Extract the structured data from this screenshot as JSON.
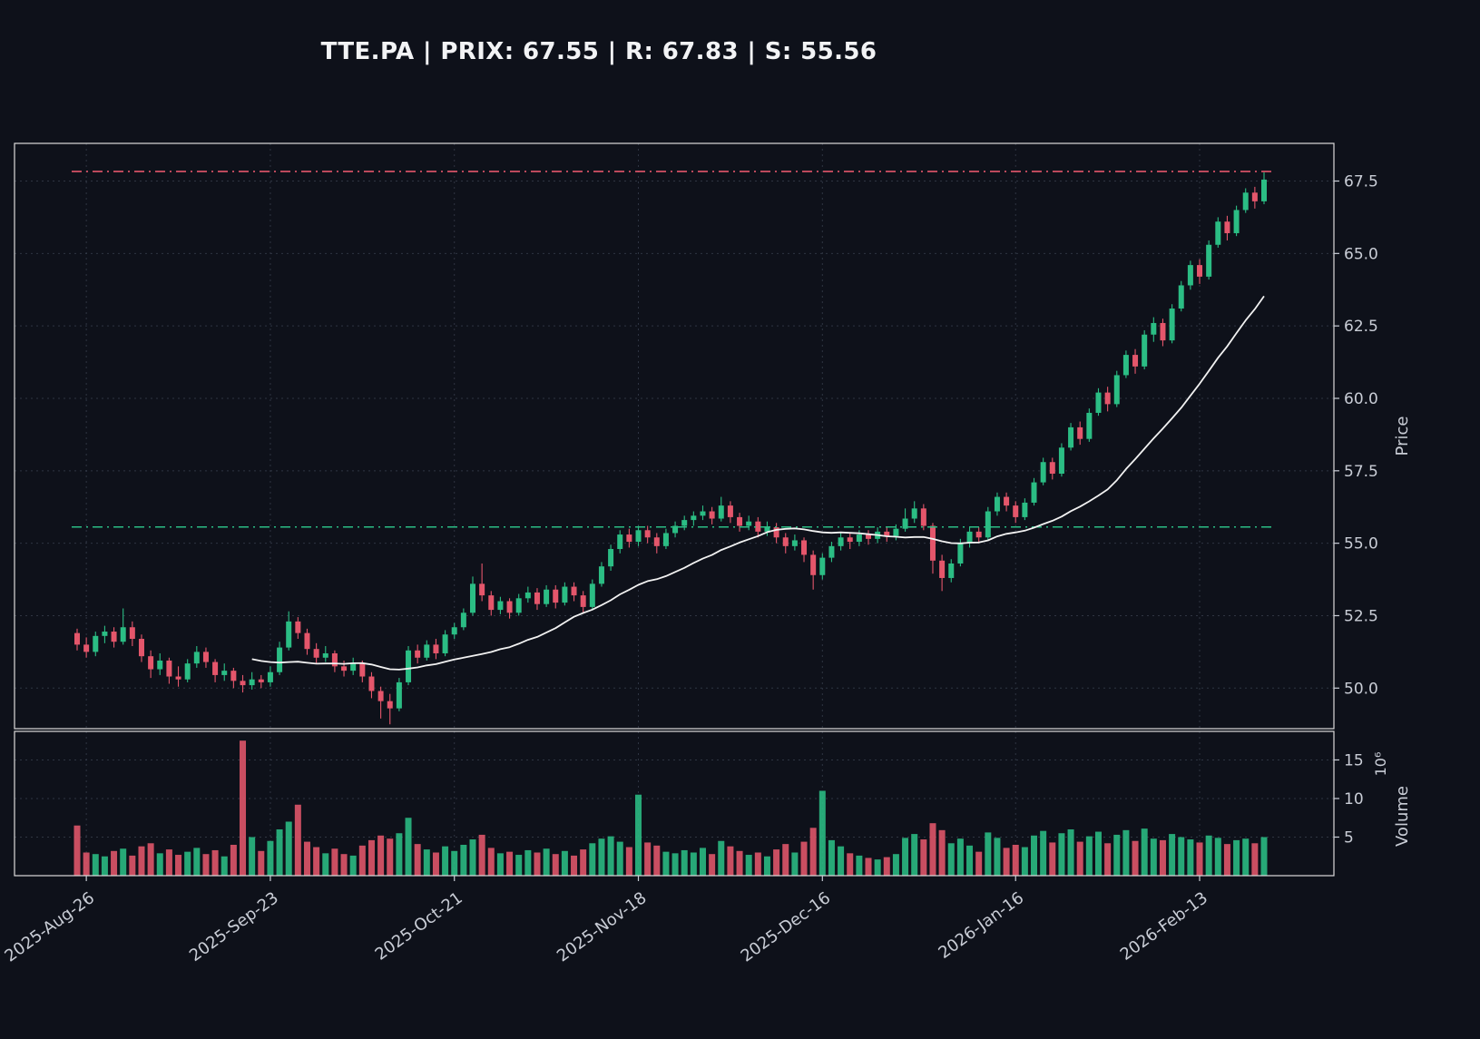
{
  "header": {
    "title": "TTE.PA | PRIX: 67.55 | R: 67.83 | S: 55.56",
    "symbol": "TTE.PA",
    "price": 67.55,
    "resistance_value": 67.83,
    "support_value": 55.56
  },
  "chart_data": {
    "type": "candlestick",
    "title": "TTE.PA | PRIX: 67.55 | R: 67.83 | S: 55.56",
    "price_axis": {
      "label": "Price",
      "ticks": [
        50.0,
        52.5,
        55.0,
        57.5,
        60.0,
        62.5,
        65.0,
        67.5
      ],
      "range": [
        48.6,
        68.8
      ]
    },
    "volume_axis": {
      "label": "Volume",
      "offset_text": "10⁶",
      "ticks": [
        5,
        10,
        15
      ],
      "range": [
        0,
        18.7
      ]
    },
    "x_ticks": [
      {
        "i": 1,
        "label": "2025-Aug-26"
      },
      {
        "i": 21,
        "label": "2025-Sep-23"
      },
      {
        "i": 41,
        "label": "2025-Oct-21"
      },
      {
        "i": 61,
        "label": "2025-Nov-18"
      },
      {
        "i": 81,
        "label": "2025-Dec-16"
      },
      {
        "i": 102,
        "label": "2026-Jan-16"
      },
      {
        "i": 122,
        "label": "2026-Feb-13"
      }
    ],
    "levels": {
      "resistance": 67.83,
      "support": 55.56
    },
    "moving_average": {
      "window": 20
    },
    "colors": {
      "up": "#2bbd84",
      "down": "#e4566b",
      "ma": "#f2f2f2",
      "resistance": "#e4566b",
      "support": "#2bbd84",
      "grid": "#3a4150",
      "text": "#c9cdd6",
      "spine": "#dcdcdc",
      "background": "#0e111a"
    },
    "candles": [
      [
        51.9,
        52.05,
        51.3,
        51.5,
        6.5
      ],
      [
        51.5,
        51.75,
        51.05,
        51.25,
        3.0
      ],
      [
        51.25,
        51.95,
        51.1,
        51.8,
        2.8
      ],
      [
        51.8,
        52.15,
        51.55,
        51.95,
        2.5
      ],
      [
        51.95,
        52.1,
        51.4,
        51.6,
        3.2
      ],
      [
        51.6,
        52.75,
        51.5,
        52.1,
        3.5
      ],
      [
        52.1,
        52.3,
        51.45,
        51.7,
        2.6
      ],
      [
        51.7,
        51.85,
        50.9,
        51.1,
        3.8
      ],
      [
        51.1,
        51.3,
        50.35,
        50.65,
        4.2
      ],
      [
        50.65,
        51.2,
        50.45,
        50.95,
        2.9
      ],
      [
        50.95,
        51.05,
        50.15,
        50.4,
        3.4
      ],
      [
        50.4,
        50.75,
        50.05,
        50.3,
        2.7
      ],
      [
        50.3,
        51.0,
        50.2,
        50.85,
        3.1
      ],
      [
        50.85,
        51.45,
        50.7,
        51.25,
        3.6
      ],
      [
        51.25,
        51.4,
        50.7,
        50.9,
        2.8
      ],
      [
        50.9,
        51.0,
        50.2,
        50.45,
        3.3
      ],
      [
        50.45,
        50.85,
        50.25,
        50.6,
        2.5
      ],
      [
        50.6,
        50.7,
        50.0,
        50.25,
        4.0
      ],
      [
        50.25,
        50.45,
        49.85,
        50.1,
        17.5
      ],
      [
        50.1,
        50.55,
        49.95,
        50.3,
        5.0
      ],
      [
        50.3,
        50.45,
        50.0,
        50.2,
        3.2
      ],
      [
        50.2,
        50.75,
        50.05,
        50.55,
        4.5
      ],
      [
        50.55,
        51.6,
        50.45,
        51.4,
        6.0
      ],
      [
        51.4,
        52.65,
        51.3,
        52.3,
        7.0
      ],
      [
        52.3,
        52.45,
        51.7,
        51.9,
        9.2
      ],
      [
        51.9,
        52.05,
        51.15,
        51.35,
        4.4
      ],
      [
        51.35,
        51.55,
        50.85,
        51.05,
        3.7
      ],
      [
        51.05,
        51.45,
        50.9,
        51.2,
        2.9
      ],
      [
        51.2,
        51.3,
        50.55,
        50.75,
        3.5
      ],
      [
        50.75,
        50.95,
        50.4,
        50.6,
        2.8
      ],
      [
        50.6,
        51.05,
        50.45,
        50.85,
        2.6
      ],
      [
        50.85,
        50.95,
        50.2,
        50.4,
        3.9
      ],
      [
        50.4,
        50.55,
        49.65,
        49.9,
        4.6
      ],
      [
        49.9,
        50.05,
        48.95,
        49.55,
        5.2
      ],
      [
        49.55,
        49.8,
        48.75,
        49.3,
        4.8
      ],
      [
        49.3,
        50.35,
        49.2,
        50.2,
        5.5
      ],
      [
        50.2,
        51.45,
        50.1,
        51.3,
        7.5
      ],
      [
        51.3,
        51.5,
        50.85,
        51.05,
        4.1
      ],
      [
        51.05,
        51.65,
        50.95,
        51.5,
        3.4
      ],
      [
        51.5,
        51.7,
        51.0,
        51.2,
        3.0
      ],
      [
        51.2,
        52.0,
        51.1,
        51.85,
        3.8
      ],
      [
        51.85,
        52.25,
        51.7,
        52.1,
        3.2
      ],
      [
        52.1,
        52.75,
        52.0,
        52.6,
        4.0
      ],
      [
        52.6,
        53.85,
        52.5,
        53.6,
        4.7
      ],
      [
        53.6,
        54.3,
        53.0,
        53.2,
        5.3
      ],
      [
        53.2,
        53.35,
        52.5,
        52.7,
        3.6
      ],
      [
        52.7,
        53.15,
        52.55,
        53.0,
        2.9
      ],
      [
        53.0,
        53.1,
        52.4,
        52.6,
        3.1
      ],
      [
        52.6,
        53.25,
        52.5,
        53.1,
        2.7
      ],
      [
        53.1,
        53.5,
        52.95,
        53.3,
        3.3
      ],
      [
        53.3,
        53.45,
        52.7,
        52.9,
        3.0
      ],
      [
        52.9,
        53.55,
        52.8,
        53.4,
        3.5
      ],
      [
        53.4,
        53.55,
        52.75,
        52.95,
        2.8
      ],
      [
        52.95,
        53.65,
        52.85,
        53.5,
        3.2
      ],
      [
        53.5,
        53.65,
        53.0,
        53.2,
        2.6
      ],
      [
        53.2,
        53.35,
        52.6,
        52.8,
        3.4
      ],
      [
        52.8,
        53.75,
        52.7,
        53.6,
        4.2
      ],
      [
        53.6,
        54.35,
        53.5,
        54.2,
        4.8
      ],
      [
        54.2,
        54.95,
        54.05,
        54.8,
        5.1
      ],
      [
        54.8,
        55.45,
        54.65,
        55.3,
        4.4
      ],
      [
        55.3,
        55.5,
        54.85,
        55.05,
        3.7
      ],
      [
        55.05,
        55.6,
        54.9,
        55.45,
        10.5
      ],
      [
        55.45,
        55.6,
        55.0,
        55.2,
        4.3
      ],
      [
        55.2,
        55.35,
        54.65,
        54.9,
        3.9
      ],
      [
        54.9,
        55.5,
        54.8,
        55.35,
        3.1
      ],
      [
        55.35,
        55.75,
        55.2,
        55.6,
        2.9
      ],
      [
        55.6,
        55.95,
        55.45,
        55.8,
        3.3
      ],
      [
        55.8,
        56.1,
        55.6,
        55.95,
        3.0
      ],
      [
        55.95,
        56.3,
        55.8,
        56.1,
        3.6
      ],
      [
        56.1,
        56.25,
        55.65,
        55.85,
        2.8
      ],
      [
        55.85,
        56.6,
        55.75,
        56.3,
        4.5
      ],
      [
        56.3,
        56.45,
        55.7,
        55.9,
        3.8
      ],
      [
        55.9,
        56.05,
        55.4,
        55.6,
        3.2
      ],
      [
        55.6,
        55.95,
        55.45,
        55.75,
        2.7
      ],
      [
        55.75,
        55.9,
        55.2,
        55.4,
        3.0
      ],
      [
        55.4,
        55.75,
        55.25,
        55.55,
        2.5
      ],
      [
        55.55,
        55.7,
        55.0,
        55.2,
        3.4
      ],
      [
        55.2,
        55.35,
        54.65,
        54.9,
        4.1
      ],
      [
        54.9,
        55.3,
        54.75,
        55.1,
        3.0
      ],
      [
        55.1,
        55.2,
        54.35,
        54.6,
        4.4
      ],
      [
        54.6,
        54.75,
        53.4,
        53.9,
        6.2
      ],
      [
        53.9,
        54.65,
        53.75,
        54.5,
        11.0
      ],
      [
        54.5,
        55.05,
        54.35,
        54.9,
        4.6
      ],
      [
        54.9,
        55.35,
        54.75,
        55.2,
        3.8
      ],
      [
        55.2,
        55.35,
        54.8,
        55.05,
        2.9
      ],
      [
        55.05,
        55.45,
        54.9,
        55.3,
        2.6
      ],
      [
        55.3,
        55.45,
        54.95,
        55.15,
        2.3
      ],
      [
        55.15,
        55.55,
        55.0,
        55.4,
        2.1
      ],
      [
        55.4,
        55.55,
        55.05,
        55.25,
        2.4
      ],
      [
        55.25,
        55.65,
        55.1,
        55.5,
        2.8
      ],
      [
        55.5,
        56.2,
        55.4,
        55.85,
        4.9
      ],
      [
        55.85,
        56.45,
        55.7,
        56.2,
        5.4
      ],
      [
        56.2,
        56.35,
        55.45,
        55.6,
        4.7
      ],
      [
        55.6,
        55.7,
        53.95,
        54.4,
        6.8
      ],
      [
        54.4,
        54.6,
        53.35,
        53.8,
        5.9
      ],
      [
        53.8,
        54.45,
        53.65,
        54.3,
        4.2
      ],
      [
        54.3,
        55.15,
        54.2,
        55.0,
        4.8
      ],
      [
        55.0,
        55.55,
        54.85,
        55.4,
        3.9
      ],
      [
        55.4,
        55.55,
        55.0,
        55.2,
        3.1
      ],
      [
        55.2,
        56.25,
        55.1,
        56.1,
        5.6
      ],
      [
        56.1,
        56.75,
        55.95,
        56.6,
        4.9
      ],
      [
        56.6,
        56.75,
        56.1,
        56.3,
        3.6
      ],
      [
        56.3,
        56.45,
        55.7,
        55.9,
        4.0
      ],
      [
        55.9,
        56.55,
        55.8,
        56.4,
        3.7
      ],
      [
        56.4,
        57.25,
        56.3,
        57.1,
        5.2
      ],
      [
        57.1,
        57.95,
        57.0,
        57.8,
        5.8
      ],
      [
        57.8,
        57.95,
        57.2,
        57.4,
        4.3
      ],
      [
        57.4,
        58.45,
        57.3,
        58.3,
        5.5
      ],
      [
        58.3,
        59.15,
        58.2,
        59.0,
        6.0
      ],
      [
        59.0,
        59.2,
        58.4,
        58.6,
        4.4
      ],
      [
        58.6,
        59.65,
        58.5,
        59.5,
        5.1
      ],
      [
        59.5,
        60.35,
        59.4,
        60.2,
        5.7
      ],
      [
        60.2,
        60.4,
        59.55,
        59.8,
        4.2
      ],
      [
        59.8,
        60.95,
        59.7,
        60.8,
        5.3
      ],
      [
        60.8,
        61.65,
        60.7,
        61.5,
        5.9
      ],
      [
        61.5,
        61.7,
        60.85,
        61.1,
        4.5
      ],
      [
        61.1,
        62.35,
        61.0,
        62.2,
        6.1
      ],
      [
        62.2,
        62.8,
        61.95,
        62.6,
        4.8
      ],
      [
        62.6,
        62.75,
        61.8,
        62.0,
        4.6
      ],
      [
        62.0,
        63.25,
        61.9,
        63.1,
        5.4
      ],
      [
        63.1,
        64.05,
        63.0,
        63.9,
        5.0
      ],
      [
        63.9,
        64.75,
        63.75,
        64.6,
        4.7
      ],
      [
        64.6,
        64.8,
        63.95,
        64.2,
        4.3
      ],
      [
        64.2,
        65.45,
        64.1,
        65.3,
        5.2
      ],
      [
        65.3,
        66.25,
        65.2,
        66.1,
        4.9
      ],
      [
        66.1,
        66.3,
        65.45,
        65.7,
        4.1
      ],
      [
        65.7,
        66.65,
        65.6,
        66.5,
        4.6
      ],
      [
        66.5,
        67.25,
        66.4,
        67.1,
        4.8
      ],
      [
        67.1,
        67.3,
        66.55,
        66.8,
        4.2
      ],
      [
        66.8,
        67.8,
        66.7,
        67.55,
        5.0
      ]
    ]
  }
}
